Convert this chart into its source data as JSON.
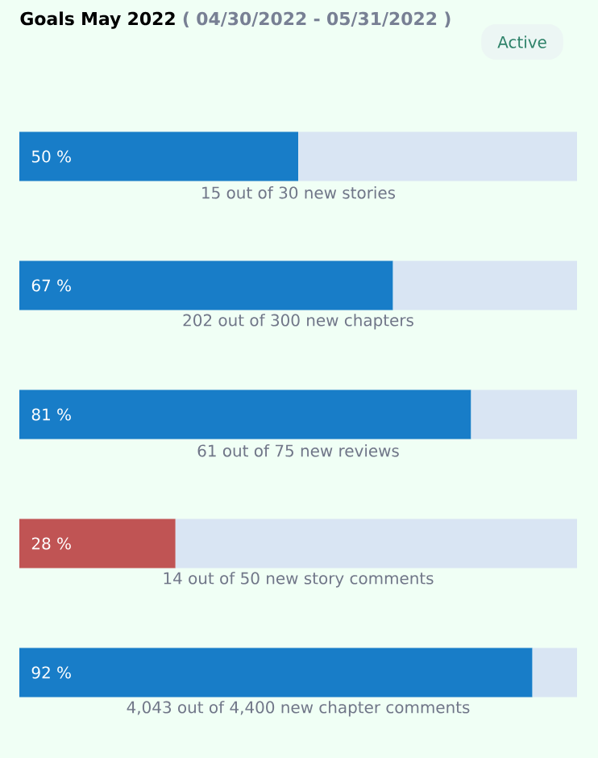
{
  "chart_data": {
    "type": "bar",
    "orientation": "horizontal",
    "stacked": true,
    "tick_labels": false,
    "title": "Goals May 2022",
    "subtitle": "( 04/30/2022 - 05/31/2022 )",
    "annotations": [
      "Active"
    ],
    "categories": [
      "15 out of 30 new stories",
      "202 out of 300 new chapters",
      "61 out of 75 new reviews",
      "14 out of 50 new story comments",
      "4,043 out of 4,400 new chapter comments"
    ],
    "xlim": [
      0,
      100
    ],
    "series": [
      {
        "colors": [
          "#187dc8",
          "#187dc8",
          "#187dc8",
          "#c05454",
          "#187dc8"
        ],
        "values": [
          50,
          67,
          81,
          28,
          92
        ],
        "value_labels": [
          "50  %",
          "67  %",
          "81  %",
          "28  %",
          "92  %"
        ]
      },
      {
        "color": "#d9e5f3",
        "values": [
          50,
          33,
          19,
          72,
          8
        ]
      }
    ]
  }
}
